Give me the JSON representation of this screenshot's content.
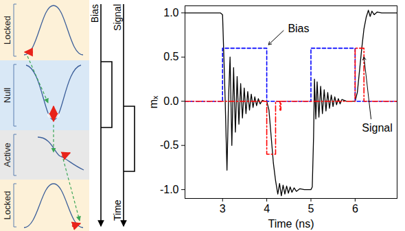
{
  "diagram": {
    "phases": [
      "Locked",
      "Null",
      "Active",
      "Locked"
    ],
    "pulse_labels": [
      "Bias",
      "Signal"
    ],
    "time_label": "Time"
  },
  "chart_data": {
    "type": "line",
    "x_label": "Time (ns)",
    "y_label": "mₓ",
    "xlim": [
      2.15,
      6.95
    ],
    "xticks": [
      3,
      4,
      5,
      6
    ],
    "ylim": [
      -1.1,
      1.08
    ],
    "yticks": [
      {
        "value": -1,
        "label": "-1.0"
      },
      {
        "value": -0.5,
        "label": "-0.5"
      },
      {
        "value": 0,
        "label": "0.0"
      },
      {
        "value": 0.5,
        "label": "0.5"
      },
      {
        "value": 1,
        "label": "1.0"
      }
    ],
    "grid": false,
    "series": [
      {
        "name": "mₓ",
        "color": "#000000",
        "line_style": "solid",
        "x": [
          2.15,
          2.95,
          3.0,
          3.03,
          3.06,
          3.08,
          3.1,
          3.14,
          3.17,
          3.21,
          3.25,
          3.29,
          3.33,
          3.37,
          3.41,
          3.45,
          3.49,
          3.53,
          3.57,
          3.61,
          3.65,
          3.69,
          3.73,
          3.77,
          3.81,
          3.85,
          3.9,
          3.95,
          4.0,
          4.05,
          4.1,
          4.15,
          4.2,
          4.25,
          4.29,
          4.33,
          4.37,
          4.41,
          4.45,
          4.49,
          4.53,
          4.57,
          4.62,
          4.67,
          4.75,
          4.85,
          5.0,
          5.03,
          5.06,
          5.08,
          5.11,
          5.14,
          5.18,
          5.22,
          5.26,
          5.3,
          5.34,
          5.38,
          5.42,
          5.46,
          5.5,
          5.54,
          5.58,
          5.62,
          5.66,
          5.7,
          5.8,
          6.0,
          6.05,
          6.1,
          6.15,
          6.2,
          6.25,
          6.3,
          6.34,
          6.38,
          6.43,
          6.5,
          6.6,
          6.95
        ],
        "values": [
          1.0,
          1.0,
          0.98,
          0.5,
          0.0,
          -0.4,
          -0.78,
          0.1,
          0.5,
          -0.5,
          0.38,
          -0.35,
          0.28,
          -0.26,
          0.2,
          -0.19,
          0.15,
          -0.14,
          0.11,
          -0.1,
          0.08,
          -0.07,
          0.05,
          -0.05,
          0.03,
          -0.03,
          0.01,
          0.0,
          0.0,
          -0.1,
          -0.4,
          -0.7,
          -0.9,
          -1.05,
          -0.93,
          -1.07,
          -0.95,
          -1.05,
          -0.96,
          -1.04,
          -0.97,
          -1.03,
          -0.98,
          -1.02,
          -0.99,
          -1.0,
          -1.0,
          -0.97,
          -0.4,
          0.25,
          -0.2,
          0.22,
          -0.18,
          0.17,
          -0.14,
          0.13,
          -0.11,
          0.1,
          -0.08,
          0.07,
          -0.06,
          0.05,
          -0.04,
          0.03,
          -0.03,
          0.02,
          0.0,
          0.0,
          0.1,
          0.35,
          0.6,
          0.82,
          0.95,
          1.03,
          0.96,
          1.02,
          0.98,
          1.01,
          1.0,
          1.0
        ]
      },
      {
        "name": "Bias",
        "color": "#0000ff",
        "line_style": "dashed",
        "x": [
          2.15,
          3.0,
          3.0,
          4.0,
          4.0,
          5.0,
          5.0,
          6.0,
          6.0,
          6.95
        ],
        "values": [
          0,
          0,
          0.6,
          0.6,
          0,
          0,
          0.6,
          0.6,
          0,
          0
        ]
      },
      {
        "name": "Signal",
        "color": "#ff0000",
        "line_style": "dashdot",
        "x": [
          2.15,
          4.0,
          4.0,
          4.2,
          4.2,
          4.3,
          4.3,
          4.32,
          4.32,
          6.0,
          6.0,
          6.2,
          6.2,
          6.95
        ],
        "values": [
          0,
          0,
          -0.6,
          -0.6,
          0,
          0,
          -0.1,
          -0.1,
          0,
          0,
          0.6,
          0.6,
          0,
          0
        ]
      }
    ]
  }
}
